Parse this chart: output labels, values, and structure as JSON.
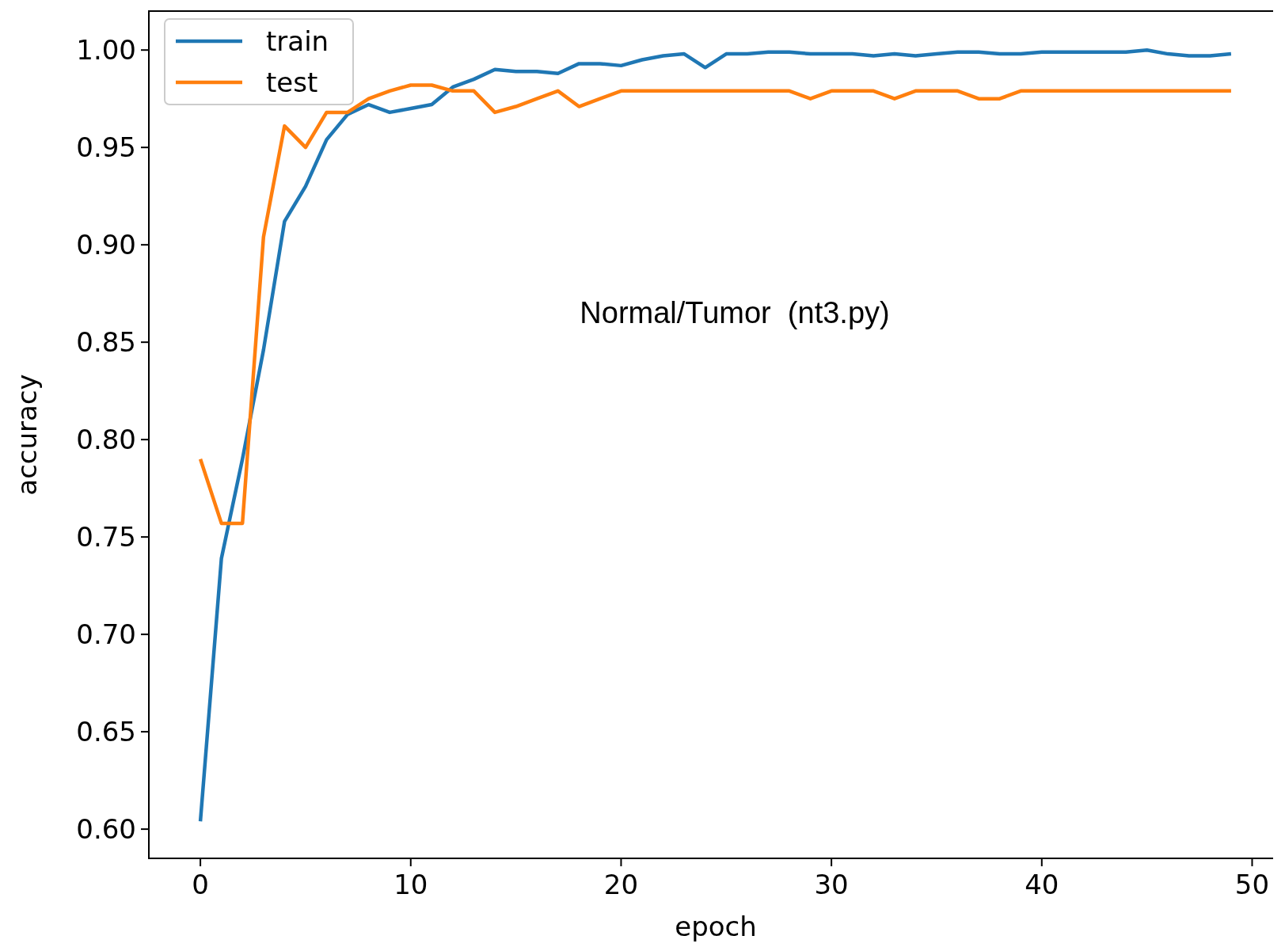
{
  "chart_data": {
    "type": "line",
    "xlabel": "epoch",
    "ylabel": "accuracy",
    "annotations": [
      "Normal/Tumor  (nt3.py)"
    ],
    "x": [
      0,
      1,
      2,
      3,
      4,
      5,
      6,
      7,
      8,
      9,
      10,
      11,
      12,
      13,
      14,
      15,
      16,
      17,
      18,
      19,
      20,
      21,
      22,
      23,
      24,
      25,
      26,
      27,
      28,
      29,
      30,
      31,
      32,
      33,
      34,
      35,
      36,
      37,
      38,
      39,
      40,
      41,
      42,
      43,
      44,
      45,
      46,
      47,
      48,
      49
    ],
    "series": [
      {
        "name": "train",
        "color": "#1f77b4",
        "values": [
          0.604,
          0.739,
          0.79,
          0.846,
          0.912,
          0.93,
          0.954,
          0.967,
          0.972,
          0.968,
          0.97,
          0.972,
          0.981,
          0.985,
          0.99,
          0.989,
          0.989,
          0.988,
          0.993,
          0.993,
          0.992,
          0.995,
          0.997,
          0.998,
          0.991,
          0.998,
          0.998,
          0.999,
          0.999,
          0.998,
          0.998,
          0.998,
          0.997,
          0.998,
          0.997,
          0.998,
          0.999,
          0.999,
          0.998,
          0.998,
          0.999,
          0.999,
          0.999,
          0.999,
          0.999,
          1.0,
          0.998,
          0.997,
          0.997,
          0.998
        ]
      },
      {
        "name": "test",
        "color": "#ff7f0e",
        "values": [
          0.79,
          0.757,
          0.757,
          0.904,
          0.961,
          0.95,
          0.968,
          0.968,
          0.975,
          0.979,
          0.982,
          0.982,
          0.979,
          0.979,
          0.968,
          0.971,
          0.975,
          0.979,
          0.971,
          0.975,
          0.979,
          0.979,
          0.979,
          0.979,
          0.979,
          0.979,
          0.979,
          0.979,
          0.979,
          0.975,
          0.979,
          0.979,
          0.979,
          0.975,
          0.979,
          0.979,
          0.979,
          0.975,
          0.975,
          0.979,
          0.979,
          0.979,
          0.979,
          0.979,
          0.979,
          0.979,
          0.979,
          0.979,
          0.979,
          0.979
        ]
      }
    ],
    "xlim": [
      -2.45,
      51.45
    ],
    "xticks": [
      0,
      10,
      20,
      30,
      40,
      50
    ],
    "ylim": [
      0.585,
      1.02
    ],
    "yticks": [
      {
        "value": 0.6,
        "label": "0.60"
      },
      {
        "value": 0.65,
        "label": "0.65"
      },
      {
        "value": 0.7,
        "label": "0.70"
      },
      {
        "value": 0.75,
        "label": "0.75"
      },
      {
        "value": 0.8,
        "label": "0.80"
      },
      {
        "value": 0.85,
        "label": "0.85"
      },
      {
        "value": 0.9,
        "label": "0.90"
      },
      {
        "value": 0.95,
        "label": "0.95"
      },
      {
        "value": 1.0,
        "label": "1.00"
      }
    ],
    "legend": "top left",
    "grid": false,
    "marker": "none",
    "line_style": "solid"
  }
}
